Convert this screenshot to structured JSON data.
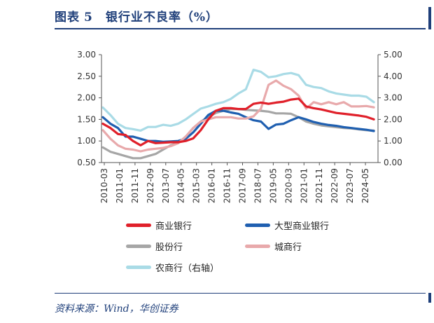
{
  "header": {
    "figure_label": "图表",
    "figure_number": "5",
    "title": "银行业不良率（%）"
  },
  "source": "资料来源：Wind，华创证券",
  "chart_data": {
    "type": "line",
    "x_ticks": [
      "2010-03",
      "2011-01",
      "2011-11",
      "2012-09",
      "2013-07",
      "2014-05",
      "2015-03",
      "2016-01",
      "2016-11",
      "2017-09",
      "2018-07",
      "2019-05",
      "2020-03",
      "2021-01",
      "2021-11",
      "2022-09",
      "2023-07",
      "2024-05"
    ],
    "y_left": {
      "ylim": [
        0.5,
        3.0
      ],
      "ticks": [
        "0.50",
        "1.00",
        "1.50",
        "2.00",
        "2.50",
        "3.00"
      ]
    },
    "y_right": {
      "ylim": [
        0,
        5.0
      ],
      "ticks": [
        "0.00",
        "1.00",
        "2.00",
        "3.00",
        "4.00",
        "5.00"
      ]
    },
    "legend_placement": "bottom",
    "series": [
      {
        "name": "商业银行",
        "color": "#e0202a",
        "axis": "left",
        "values": [
          1.4,
          1.3,
          1.16,
          1.14,
          1.0,
          0.9,
          1.0,
          0.95,
          0.96,
          0.97,
          0.97,
          1.0,
          1.06,
          1.25,
          1.5,
          1.7,
          1.76,
          1.76,
          1.74,
          1.74,
          1.86,
          1.89,
          1.86,
          1.89,
          1.91,
          1.96,
          1.98,
          1.8,
          1.76,
          1.73,
          1.69,
          1.65,
          1.63,
          1.61,
          1.59,
          1.56,
          1.5
        ]
      },
      {
        "name": "大型商业银行",
        "color": "#1f5fb0",
        "axis": "left",
        "values": [
          1.55,
          1.4,
          1.3,
          1.1,
          1.1,
          1.05,
          1.0,
          1.0,
          0.98,
          0.99,
          1.0,
          1.05,
          1.2,
          1.4,
          1.6,
          1.7,
          1.7,
          1.66,
          1.63,
          1.55,
          1.48,
          1.45,
          1.28,
          1.38,
          1.4,
          1.48,
          1.55,
          1.5,
          1.44,
          1.4,
          1.37,
          1.35,
          1.32,
          1.3,
          1.28,
          1.26,
          1.23
        ]
      },
      {
        "name": "股份行",
        "color": "#a6a6a6",
        "axis": "left",
        "values": [
          0.85,
          0.75,
          0.7,
          0.65,
          0.6,
          0.6,
          0.65,
          0.7,
          0.8,
          0.9,
          0.95,
          1.1,
          1.3,
          1.45,
          1.55,
          1.65,
          1.7,
          1.74,
          1.74,
          1.72,
          1.71,
          1.7,
          1.68,
          1.64,
          1.64,
          1.63,
          1.55,
          1.45,
          1.4,
          1.36,
          1.34,
          1.32,
          1.3,
          1.29,
          1.27,
          1.25,
          1.24
        ]
      },
      {
        "name": "城商行",
        "color": "#e8a9ab",
        "axis": "left",
        "values": [
          1.25,
          1.05,
          0.9,
          0.82,
          0.8,
          0.76,
          0.8,
          0.82,
          0.84,
          0.88,
          0.95,
          1.1,
          1.3,
          1.45,
          1.5,
          1.55,
          1.55,
          1.55,
          1.52,
          1.52,
          1.57,
          1.75,
          2.3,
          2.4,
          2.28,
          2.2,
          2.05,
          1.75,
          1.9,
          1.85,
          1.9,
          1.85,
          1.9,
          1.8,
          1.8,
          1.81,
          1.78
        ]
      },
      {
        "name": "农商行（右轴）",
        "color": "#a9dbe6",
        "axis": "right",
        "values": [
          2.55,
          2.2,
          1.8,
          1.6,
          1.55,
          1.48,
          1.65,
          1.65,
          1.75,
          1.7,
          1.8,
          2.0,
          2.25,
          2.5,
          2.6,
          2.72,
          2.8,
          2.95,
          3.2,
          3.4,
          4.3,
          4.2,
          3.95,
          4.0,
          4.1,
          4.15,
          4.05,
          3.6,
          3.5,
          3.45,
          3.3,
          3.2,
          3.15,
          3.1,
          3.1,
          3.05,
          2.8
        ]
      }
    ]
  }
}
